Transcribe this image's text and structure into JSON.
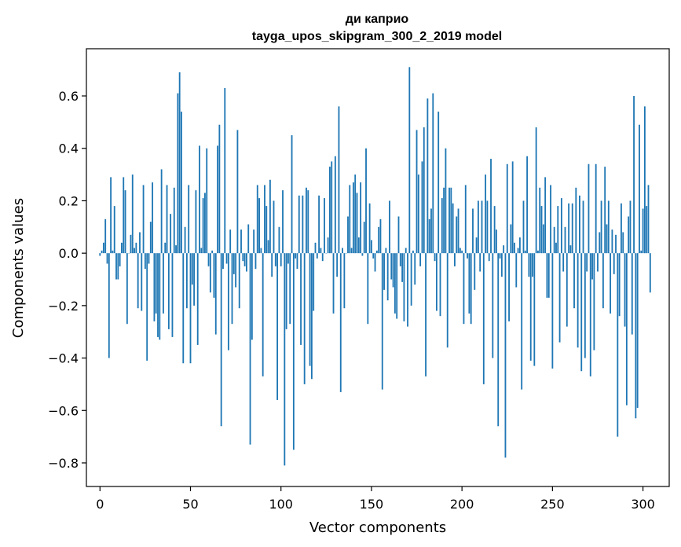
{
  "chart_data": {
    "type": "bar",
    "title_lines": [
      "ди каприо",
      "tayga_upos_skipgram_300_2_2019 model"
    ],
    "xlabel": "Vector components",
    "ylabel": "Components values",
    "xlim": [
      -7.5,
      314.5
    ],
    "ylim": [
      -0.89,
      0.78
    ],
    "xticks": [
      0,
      50,
      100,
      150,
      200,
      250,
      300
    ],
    "xtick_labels": [
      "0",
      "50",
      "100",
      "150",
      "200",
      "250",
      "300"
    ],
    "yticks": [
      -0.8,
      -0.6,
      -0.4,
      -0.2,
      0.0,
      0.2,
      0.4,
      0.6
    ],
    "ytick_labels": [
      "−0.8",
      "−0.6",
      "−0.4",
      "−0.2",
      "0.0",
      "0.2",
      "0.4",
      "0.6"
    ],
    "bar_color": "#1f77b4",
    "series": [
      {
        "name": "components",
        "values": [
          -0.01,
          0.01,
          0.04,
          0.13,
          -0.04,
          -0.4,
          0.29,
          0.01,
          0.18,
          -0.1,
          -0.1,
          -0.05,
          0.04,
          0.29,
          0.24,
          -0.27,
          0.0,
          0.07,
          0.3,
          0.02,
          0.04,
          -0.21,
          0.08,
          -0.22,
          0.26,
          -0.06,
          -0.41,
          -0.04,
          0.12,
          0.27,
          -0.26,
          -0.23,
          -0.32,
          -0.33,
          0.32,
          -0.23,
          0.04,
          0.26,
          -0.29,
          0.15,
          -0.32,
          0.25,
          0.03,
          0.61,
          0.69,
          0.54,
          -0.42,
          0.1,
          -0.21,
          0.26,
          -0.42,
          -0.12,
          -0.2,
          0.24,
          -0.35,
          0.41,
          0.02,
          0.21,
          0.23,
          0.4,
          -0.05,
          -0.15,
          0.01,
          -0.17,
          -0.31,
          0.41,
          0.49,
          -0.66,
          -0.06,
          0.63,
          -0.04,
          -0.37,
          0.09,
          -0.27,
          -0.08,
          -0.13,
          0.47,
          -0.21,
          0.09,
          -0.03,
          -0.05,
          -0.07,
          0.11,
          -0.73,
          -0.33,
          0.09,
          -0.06,
          0.26,
          0.21,
          0.02,
          -0.47,
          0.26,
          0.18,
          0.05,
          0.28,
          -0.09,
          0.2,
          -0.05,
          -0.56,
          0.1,
          -0.05,
          0.24,
          -0.81,
          -0.29,
          -0.04,
          -0.27,
          0.45,
          -0.75,
          -0.02,
          -0.06,
          0.22,
          -0.35,
          0.22,
          -0.5,
          0.25,
          0.24,
          -0.43,
          -0.48,
          -0.22,
          0.04,
          -0.02,
          0.22,
          0.02,
          -0.03,
          0.21,
          0.0,
          0.06,
          0.33,
          0.35,
          -0.23,
          0.37,
          -0.09,
          0.56,
          -0.53,
          0.02,
          -0.21,
          0.0,
          0.14,
          0.26,
          0.02,
          0.27,
          0.3,
          0.23,
          0.06,
          0.27,
          -0.01,
          0.12,
          0.4,
          -0.27,
          0.19,
          0.05,
          -0.02,
          -0.07,
          0.01,
          0.1,
          0.13,
          -0.52,
          -0.14,
          0.02,
          -0.18,
          0.2,
          -0.1,
          -0.13,
          -0.23,
          -0.25,
          0.14,
          -0.05,
          -0.11,
          -0.26,
          0.02,
          -0.28,
          0.71,
          -0.2,
          0.01,
          -0.12,
          0.47,
          0.3,
          -0.05,
          0.35,
          0.48,
          -0.47,
          0.59,
          0.13,
          0.17,
          0.61,
          -0.03,
          -0.22,
          0.54,
          -0.24,
          0.21,
          0.25,
          0.4,
          -0.36,
          0.25,
          0.25,
          0.19,
          -0.05,
          0.14,
          0.17,
          0.02,
          0.01,
          -0.27,
          0.26,
          -0.02,
          -0.23,
          -0.27,
          0.17,
          -0.14,
          0.06,
          0.2,
          -0.07,
          0.2,
          -0.5,
          0.3,
          0.2,
          -0.03,
          0.36,
          -0.4,
          0.18,
          0.09,
          -0.66,
          -0.02,
          -0.09,
          0.03,
          -0.78,
          0.34,
          -0.26,
          0.11,
          0.35,
          0.04,
          -0.13,
          0.02,
          0.06,
          -0.52,
          0.2,
          0.01,
          0.37,
          -0.09,
          -0.41,
          -0.09,
          -0.43,
          0.48,
          0.01,
          0.25,
          0.18,
          0.11,
          0.29,
          -0.17,
          -0.17,
          0.26,
          -0.44,
          0.1,
          0.04,
          0.18,
          -0.34,
          0.21,
          -0.07,
          0.1,
          -0.28,
          0.19,
          0.03,
          0.19,
          -0.21,
          0.25,
          -0.36,
          0.22,
          -0.45,
          0.2,
          -0.4,
          -0.07,
          0.34,
          -0.47,
          -0.1,
          -0.37,
          0.34,
          -0.07,
          0.08,
          0.2,
          -0.21,
          0.33,
          0.11,
          0.2,
          -0.23,
          0.09,
          -0.08,
          0.07,
          -0.7,
          -0.24,
          0.19,
          0.08,
          -0.28,
          -0.58,
          0.14,
          0.2,
          -0.31,
          0.6,
          -0.63,
          -0.59,
          0.49,
          0.01,
          0.17,
          0.56,
          0.18,
          0.26,
          -0.15
        ]
      }
    ]
  }
}
